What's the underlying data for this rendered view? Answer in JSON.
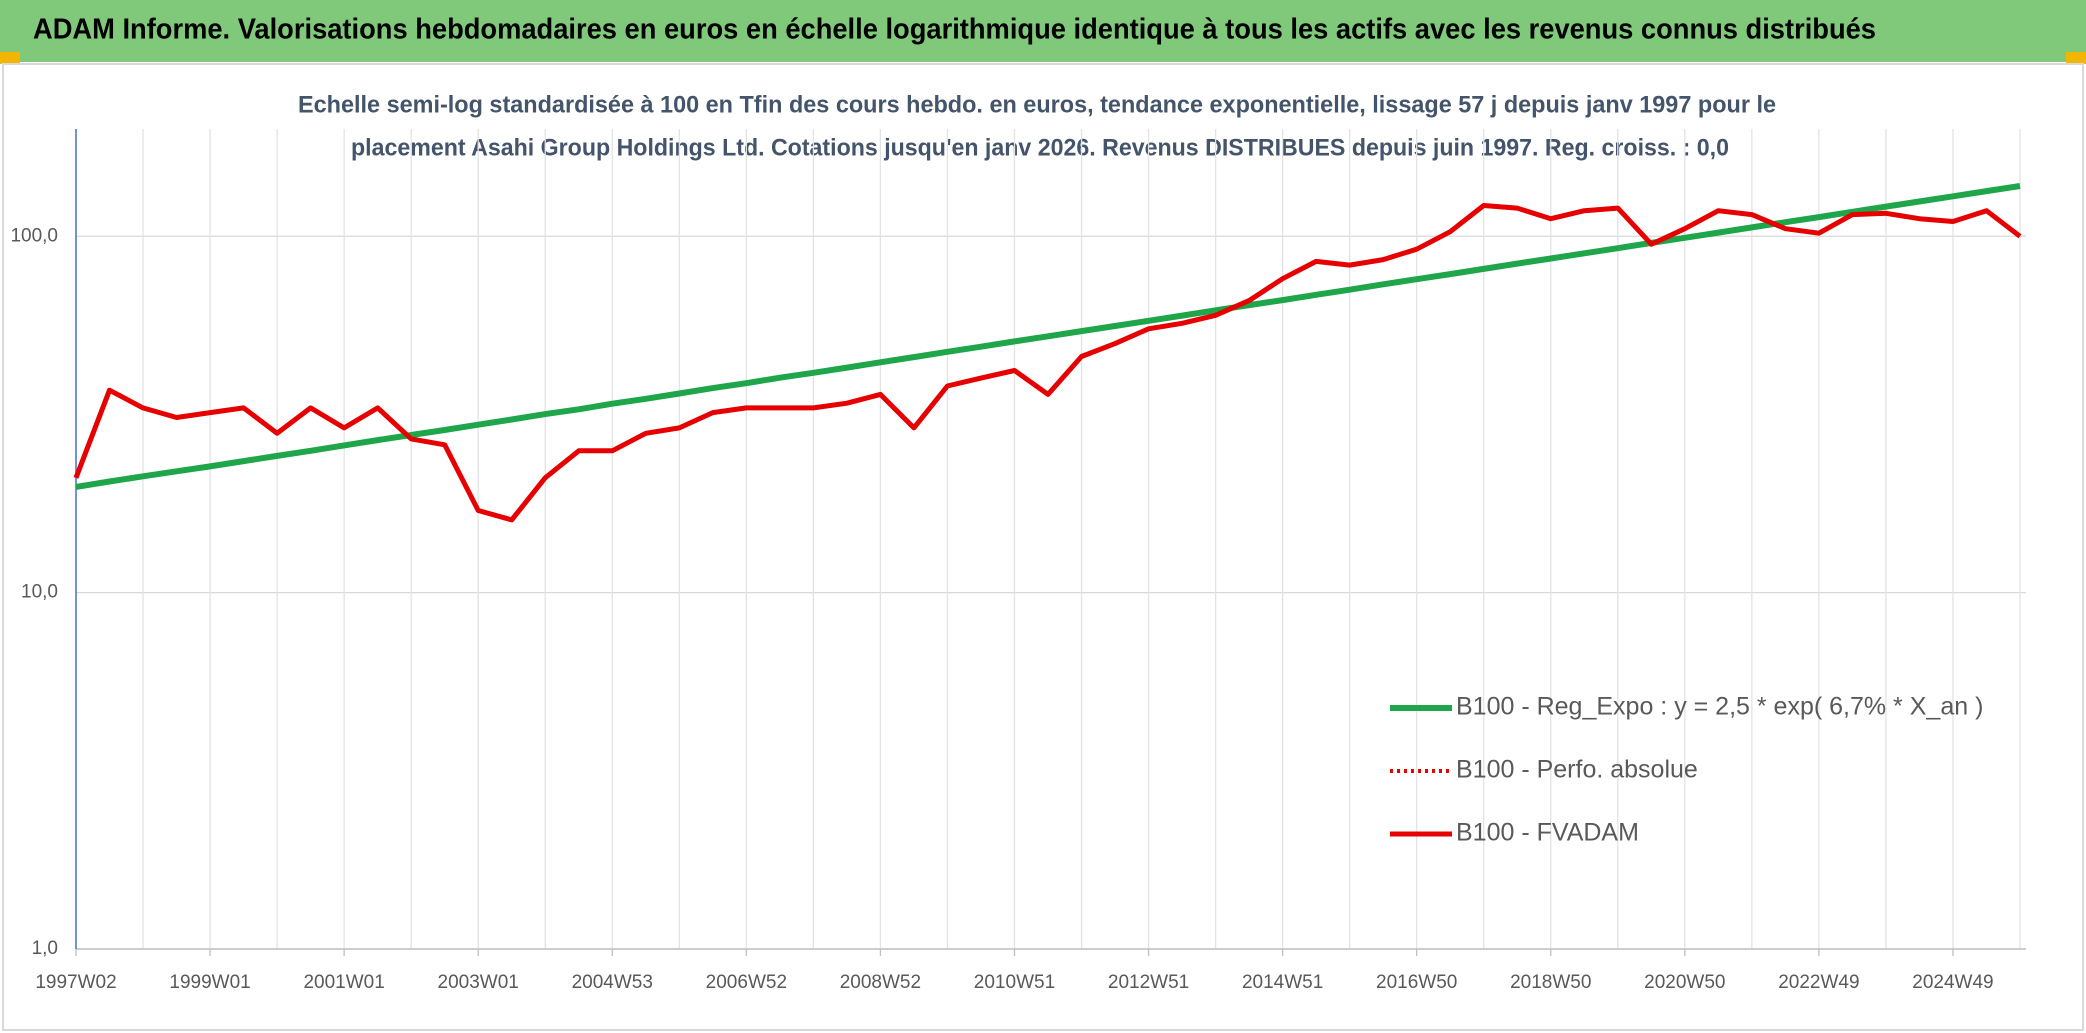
{
  "chart_data": {
    "type": "line",
    "title": "ADAM Informe. Valorisations hebdomadaires en euros en échelle logarithmique identique à tous les actifs avec les revenus connus distribués",
    "subtitle": [
      "Echelle semi-log standardisée à 100 en Tfin des cours hebdo. en euros, tendance exponentielle, lissage 57 j depuis janv 1997 pour le",
      "placement Asahi Group Holdings Ltd. Cotations jusqu'en janv 2026. Revenus DISTRIBUES depuis juin 1997. Reg. croiss. : 0,0"
    ],
    "categories": [
      "1997W02",
      null,
      null,
      null,
      "1999W01",
      null,
      null,
      null,
      "2001W01",
      null,
      null,
      null,
      "2003W01",
      null,
      null,
      null,
      "2004W53",
      null,
      null,
      null,
      "2006W52",
      null,
      null,
      null,
      "2008W52",
      null,
      null,
      null,
      "2010W51",
      null,
      null,
      null,
      "2012W51",
      null,
      null,
      null,
      "2014W51",
      null,
      null,
      null,
      "2016W50",
      null,
      null,
      null,
      "2018W50",
      null,
      null,
      null,
      "2020W50",
      null,
      null,
      null,
      "2022W49",
      null,
      null,
      null,
      "2024W49",
      null,
      null
    ],
    "series": [
      {
        "name": "B100 - Reg_Expo : y = 2,5 * exp( 6,7% *  X_an )",
        "color": "#1fa64a",
        "style": "solid",
        "width": 6,
        "values": [
          19.8,
          20.5,
          21.2,
          21.9,
          22.6,
          23.4,
          24.2,
          25.0,
          25.9,
          26.8,
          27.7,
          28.6,
          29.6,
          30.6,
          31.7,
          32.7,
          33.9,
          35.0,
          36.2,
          37.5,
          38.7,
          40.1,
          41.4,
          42.8,
          44.3,
          45.8,
          47.4,
          49.0,
          50.7,
          52.4,
          54.2,
          56.0,
          57.9,
          59.9,
          62.0,
          64.1,
          66.2,
          68.5,
          70.8,
          73.3,
          75.8,
          78.3,
          81.0,
          83.8,
          86.6,
          89.6,
          92.6,
          95.8,
          99.0,
          102.4,
          105.9,
          109.5,
          113.2,
          117.1,
          121.1,
          125.2,
          129.5,
          133.9,
          138.4
        ]
      },
      {
        "name": "B100 - Perfo. absolue",
        "color": "#e60000",
        "style": "dotted",
        "width": 4,
        "values": [
          21,
          37,
          33,
          31,
          32,
          33,
          28,
          33,
          29,
          33,
          27,
          26,
          17,
          16,
          21,
          25,
          25,
          28,
          29,
          32,
          33,
          33,
          33,
          34,
          36,
          29,
          38,
          40,
          42,
          36,
          46,
          50,
          55,
          57,
          60,
          66,
          76,
          85,
          83,
          86,
          92,
          103,
          122,
          120,
          112,
          118,
          120,
          95,
          105,
          118,
          115,
          105,
          102,
          115,
          116,
          112,
          110,
          118,
          100
        ]
      },
      {
        "name": "B100 - FVADAM",
        "color": "#e60000",
        "style": "solid",
        "width": 5,
        "values": [
          21,
          37,
          33,
          31,
          32,
          33,
          28,
          33,
          29,
          33,
          27,
          26,
          17,
          16,
          21,
          25,
          25,
          28,
          29,
          32,
          33,
          33,
          33,
          34,
          36,
          29,
          38,
          40,
          42,
          36,
          46,
          50,
          55,
          57,
          60,
          66,
          76,
          85,
          83,
          86,
          92,
          103,
          122,
          120,
          112,
          118,
          120,
          95,
          105,
          118,
          115,
          105,
          102,
          115,
          116,
          112,
          110,
          118,
          100
        ]
      }
    ],
    "log_y": true,
    "ylim": [
      1,
      200
    ],
    "yticks": [
      {
        "value": 1,
        "label": "1,0"
      },
      {
        "value": 10,
        "label": "10,0"
      },
      {
        "value": 100,
        "label": "100,0"
      }
    ],
    "grid": true,
    "legend": "lower right"
  }
}
